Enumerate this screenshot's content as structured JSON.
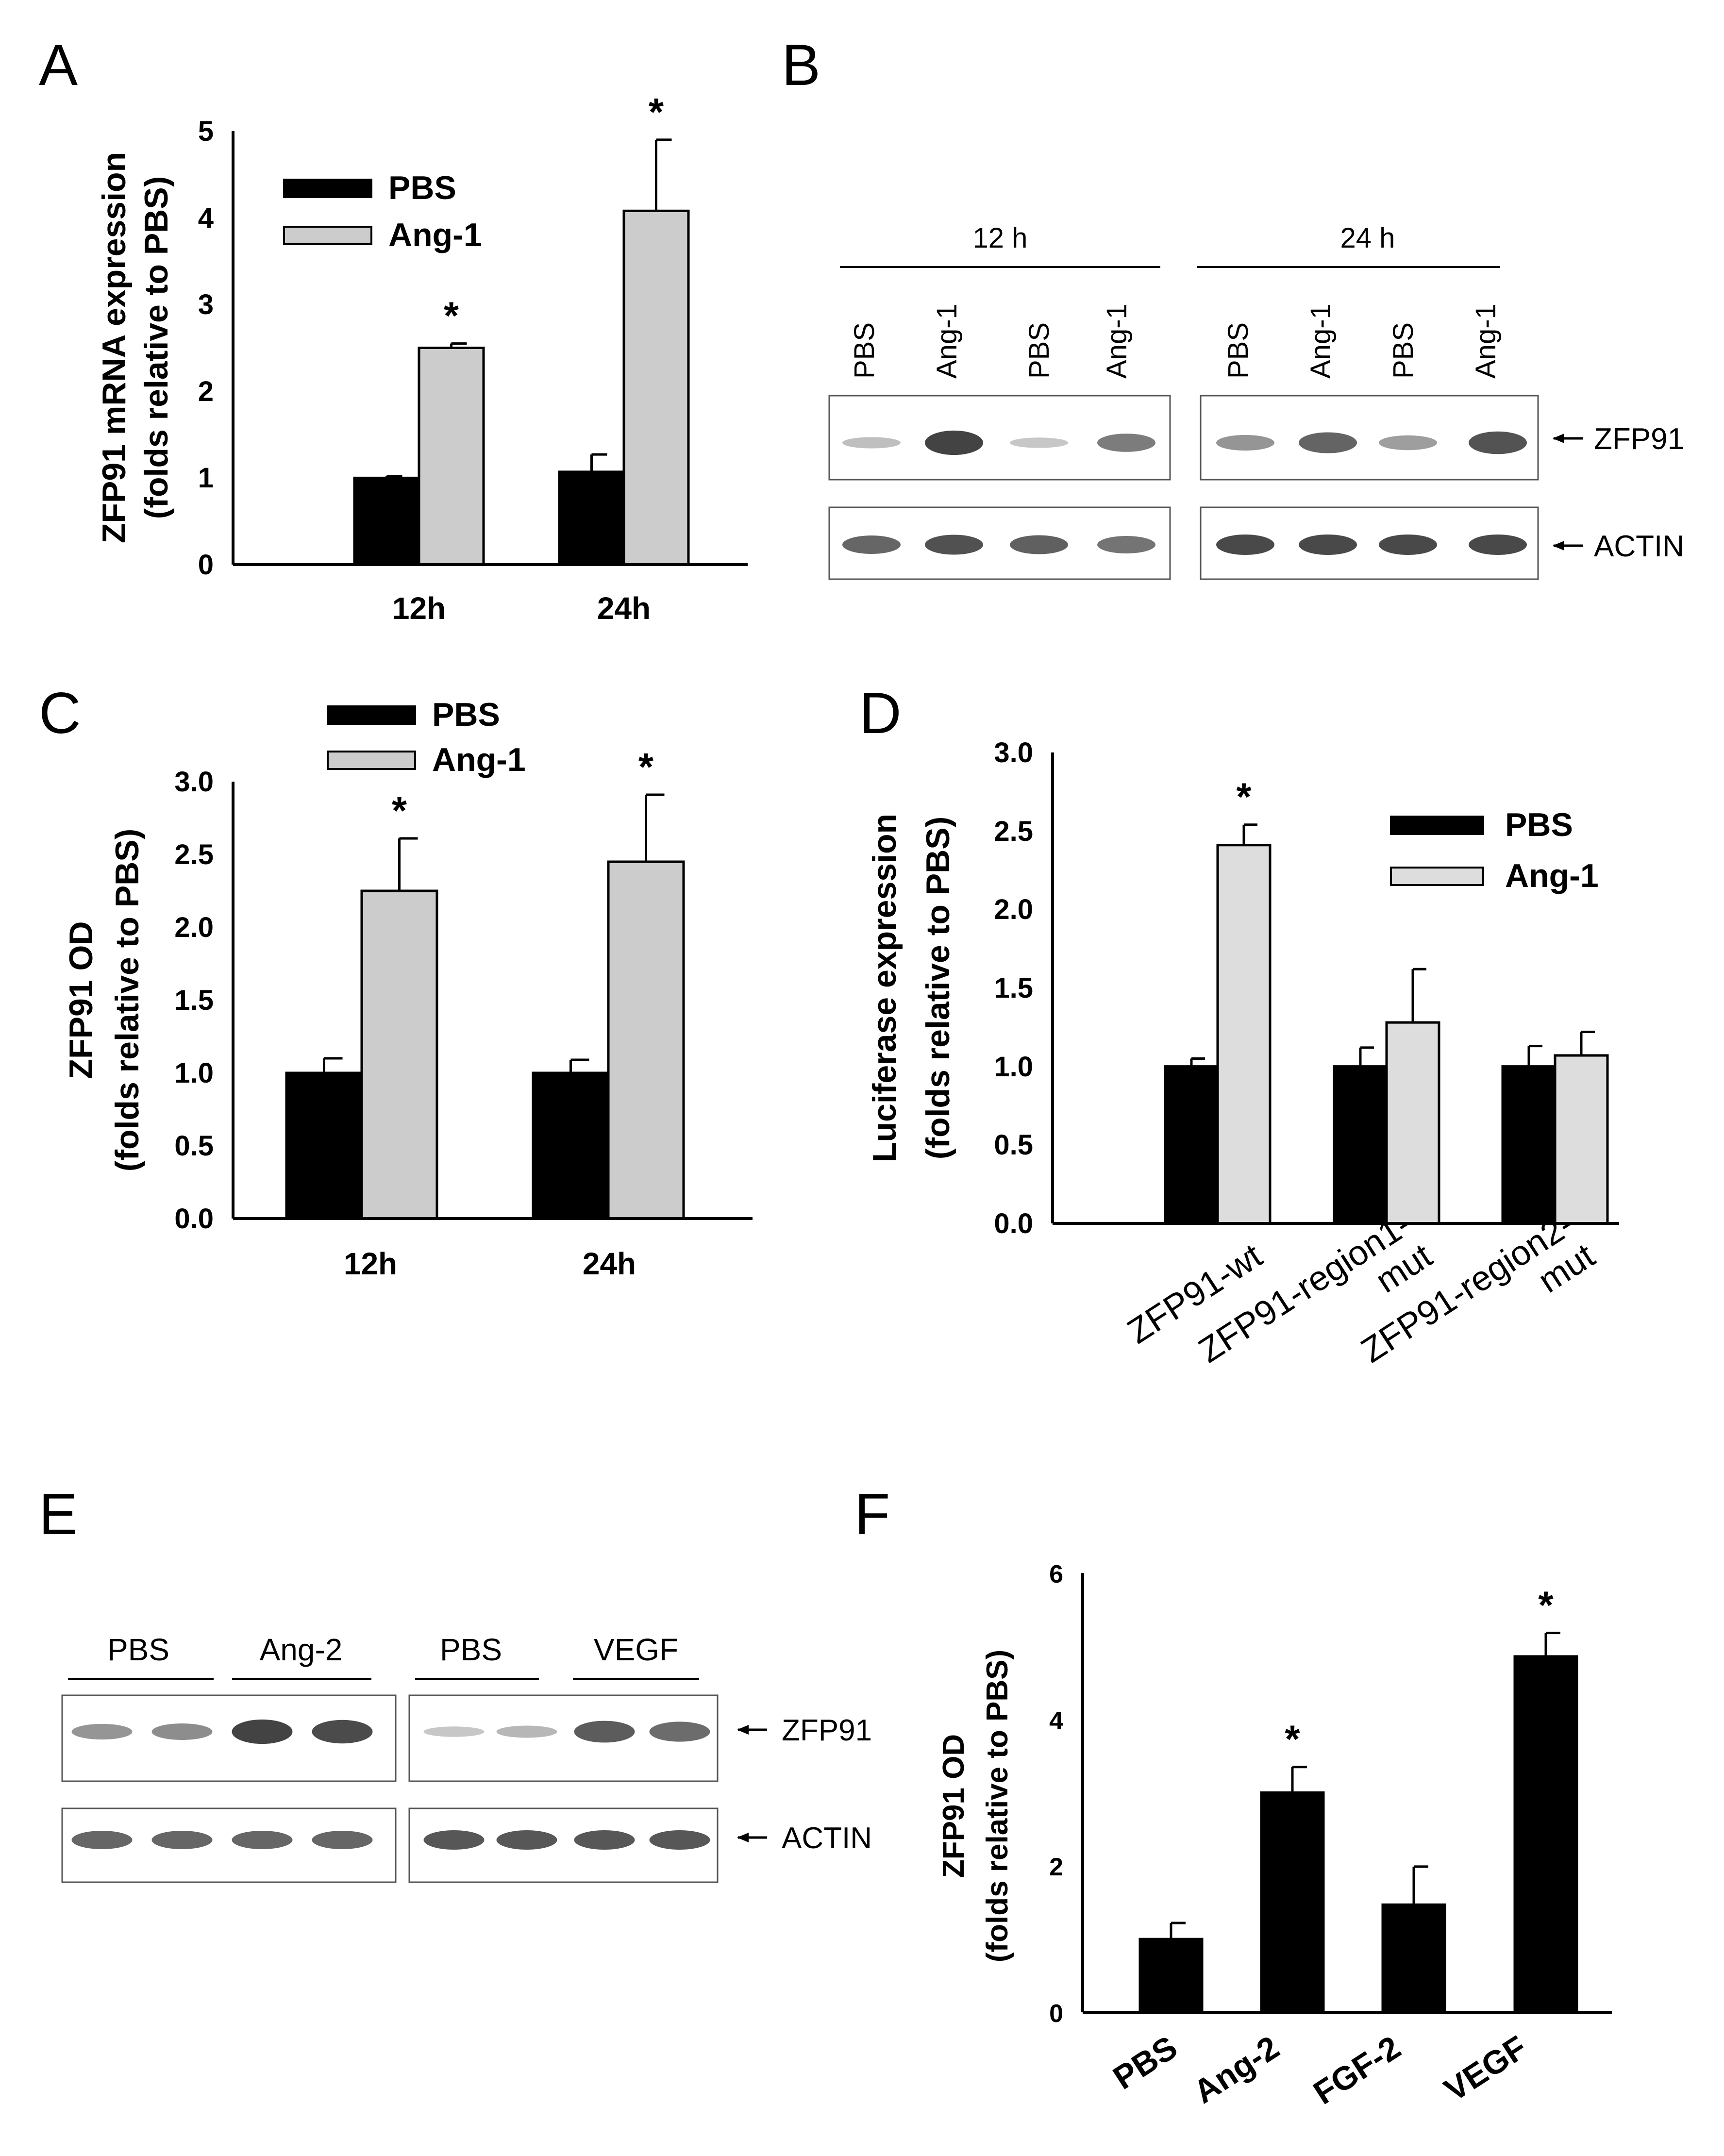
{
  "figure": {
    "panel_labels": {
      "a": "A",
      "b": "B",
      "c": "C",
      "d": "D",
      "e": "E",
      "f": "F"
    },
    "colors": {
      "pbs": "#000000",
      "ang1": "#cccccc",
      "blot_bg": "#ffffff",
      "band": "#303030"
    }
  },
  "chart_data": [
    {
      "id": "a",
      "type": "bar",
      "ylabel": "ZFP91 mRNA expression",
      "ylabel2": "(folds relative to PBS)",
      "categories": [
        "12h",
        "24h"
      ],
      "ylim": [
        0,
        5
      ],
      "yticks": [
        "0",
        "1",
        "2",
        "3",
        "4",
        "5"
      ],
      "series": [
        {
          "name": "PBS",
          "values": [
            1.0,
            1.07
          ],
          "errors": [
            0.02,
            0.2
          ]
        },
        {
          "name": "Ang-1",
          "values": [
            2.5,
            4.08
          ],
          "errors": [
            0.05,
            0.82
          ]
        }
      ],
      "annotations": [
        "*",
        "*"
      ]
    },
    {
      "id": "c",
      "type": "bar",
      "ylabel": "ZFP91 OD",
      "ylabel2": "(folds relative to PBS)",
      "categories": [
        "12h",
        "24h"
      ],
      "ylim": [
        0,
        3
      ],
      "yticks": [
        "0.0",
        "0.5",
        "1.0",
        "1.5",
        "2.0",
        "2.5",
        "3.0"
      ],
      "series": [
        {
          "name": "PBS",
          "values": [
            1.0,
            1.0
          ],
          "errors": [
            0.1,
            0.09
          ]
        },
        {
          "name": "Ang-1",
          "values": [
            2.25,
            2.45
          ],
          "errors": [
            0.36,
            0.46
          ]
        }
      ],
      "annotations": [
        "*",
        "*"
      ]
    },
    {
      "id": "d",
      "type": "bar",
      "ylabel": "Luciferase expression",
      "ylabel2": "(folds relative to PBS)",
      "categories": [
        "ZFP91-wt",
        "ZFP91-region1-\nmut",
        "ZFP91-region2-\nmut"
      ],
      "ylim": [
        0,
        3
      ],
      "yticks": [
        "0.0",
        "0.5",
        "1.0",
        "1.5",
        "2.0",
        "2.5",
        "3.0"
      ],
      "series": [
        {
          "name": "PBS",
          "values": [
            1.0,
            1.0,
            1.0
          ],
          "errors": [
            0.05,
            0.12,
            0.13
          ]
        },
        {
          "name": "Ang-1",
          "values": [
            2.41,
            1.28,
            1.07
          ],
          "errors": [
            0.13,
            0.34,
            0.15
          ]
        }
      ],
      "annotations": [
        "*"
      ]
    },
    {
      "id": "f",
      "type": "bar",
      "ylabel": "ZFP91 OD",
      "ylabel2": "(folds relative to PBS)",
      "categories": [
        "PBS",
        "Ang-2",
        "FGF-2",
        "VEGF"
      ],
      "ylim": [
        0,
        6
      ],
      "yticks": [
        "0",
        "2",
        "4",
        "6"
      ],
      "series": [
        {
          "name": "ZFP91 OD",
          "values": [
            1.0,
            3.0,
            1.47,
            4.86
          ],
          "errors": [
            0.22,
            0.35,
            0.52,
            0.32
          ]
        }
      ],
      "annotations": [
        "*",
        "*"
      ]
    }
  ],
  "blots": {
    "b": {
      "groups": [
        "12 h",
        "24 h"
      ],
      "lanes": [
        "PBS",
        "Ang-1",
        "PBS",
        "Ang-1",
        "PBS",
        "Ang-1",
        "PBS",
        "Ang-1"
      ],
      "rows": [
        "ZFP91",
        "ACTIN"
      ],
      "zfp91_intensity": [
        0.2,
        0.95,
        0.15,
        0.6,
        0.45,
        0.75,
        0.4,
        0.85
      ],
      "actin_intensity": [
        0.7,
        0.85,
        0.75,
        0.6,
        0.9,
        0.9,
        0.9,
        0.9
      ]
    },
    "e": {
      "groups": [
        "PBS",
        "Ang-2",
        "PBS",
        "VEGF"
      ],
      "rows": [
        "ZFP91",
        "ACTIN"
      ],
      "zfp91_intensity": [
        0.45,
        0.5,
        0.95,
        0.9,
        0.15,
        0.25,
        0.8,
        0.7
      ],
      "actin_intensity": [
        0.7,
        0.7,
        0.7,
        0.7,
        0.8,
        0.8,
        0.8,
        0.8
      ]
    }
  }
}
